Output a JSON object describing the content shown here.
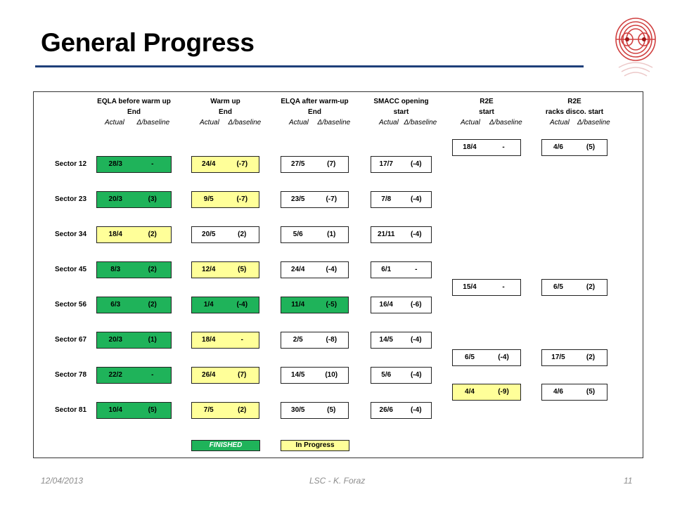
{
  "title": "General Progress",
  "colors": {
    "finished": "#1fb35a",
    "in_progress": "#ffff99",
    "not_started": "#ffffff",
    "rule": "#1f3f7a"
  },
  "columns": [
    {
      "line1": "EQLA before warm up",
      "line2": "End",
      "actual": "Actual",
      "delta": "Δ/baseline"
    },
    {
      "line1": "Warm up",
      "line2": "End",
      "actual": "Actual",
      "delta": "Δ/baseline"
    },
    {
      "line1": "ELQA after warm-up",
      "line2": "End",
      "actual": "Actual",
      "delta": "Δ/baseline"
    },
    {
      "line1": "SMACC opening",
      "line2": "start",
      "actual": "Actual",
      "delta": "Δ/baseline"
    },
    {
      "line1": "R2E",
      "line2": "start",
      "actual": "Actual",
      "delta": "Δ/baseline"
    },
    {
      "line1": "R2E",
      "line2": "racks disco. start",
      "actual": "Actual",
      "delta": "Δ/baseline"
    }
  ],
  "rows": [
    {
      "label": "Sector 12",
      "cells": [
        {
          "actual": "28/3",
          "delta": "-",
          "status": "green"
        },
        {
          "actual": "24/4",
          "delta": "(-7)",
          "status": "yellow"
        },
        {
          "actual": "27/5",
          "delta": "(7)",
          "status": "white"
        },
        {
          "actual": "17/7",
          "delta": "(-4)",
          "status": "white"
        }
      ]
    },
    {
      "label": "Sector 23",
      "cells": [
        {
          "actual": "20/3",
          "delta": "(3)",
          "status": "green"
        },
        {
          "actual": "9/5",
          "delta": "(-7)",
          "status": "yellow"
        },
        {
          "actual": "23/5",
          "delta": "(-7)",
          "status": "white"
        },
        {
          "actual": "7/8",
          "delta": "(-4)",
          "status": "white"
        }
      ]
    },
    {
      "label": "Sector 34",
      "cells": [
        {
          "actual": "18/4",
          "delta": "(2)",
          "status": "yellow"
        },
        {
          "actual": "20/5",
          "delta": "(2)",
          "status": "white"
        },
        {
          "actual": "5/6",
          "delta": "(1)",
          "status": "white"
        },
        {
          "actual": "21/11",
          "delta": "(-4)",
          "status": "white"
        }
      ]
    },
    {
      "label": "Sector 45",
      "cells": [
        {
          "actual": "8/3",
          "delta": "(2)",
          "status": "green"
        },
        {
          "actual": "12/4",
          "delta": "(5)",
          "status": "yellow"
        },
        {
          "actual": "24/4",
          "delta": "(-4)",
          "status": "white"
        },
        {
          "actual": "6/1",
          "delta": "-",
          "status": "white"
        }
      ]
    },
    {
      "label": "Sector 56",
      "cells": [
        {
          "actual": "6/3",
          "delta": "(2)",
          "status": "green"
        },
        {
          "actual": "1/4",
          "delta": "(-4)",
          "status": "green"
        },
        {
          "actual": "11/4",
          "delta": "(-5)",
          "status": "green"
        },
        {
          "actual": "16/4",
          "delta": "(-6)",
          "status": "white"
        }
      ]
    },
    {
      "label": "Sector 67",
      "cells": [
        {
          "actual": "20/3",
          "delta": "(1)",
          "status": "green"
        },
        {
          "actual": "18/4",
          "delta": "-",
          "status": "yellow"
        },
        {
          "actual": "2/5",
          "delta": "(-8)",
          "status": "white"
        },
        {
          "actual": "14/5",
          "delta": "(-4)",
          "status": "white"
        }
      ]
    },
    {
      "label": "Sector 78",
      "cells": [
        {
          "actual": "22/2",
          "delta": "-",
          "status": "green"
        },
        {
          "actual": "26/4",
          "delta": "(7)",
          "status": "yellow"
        },
        {
          "actual": "14/5",
          "delta": "(10)",
          "status": "white"
        },
        {
          "actual": "5/6",
          "delta": "(-4)",
          "status": "white"
        }
      ]
    },
    {
      "label": "Sector 81",
      "cells": [
        {
          "actual": "10/4",
          "delta": "(5)",
          "status": "green"
        },
        {
          "actual": "7/5",
          "delta": "(2)",
          "status": "yellow"
        },
        {
          "actual": "30/5",
          "delta": "(5)",
          "status": "white"
        },
        {
          "actual": "26/6",
          "delta": "(-4)",
          "status": "white"
        }
      ]
    }
  ],
  "r2e_groups": [
    {
      "r2e": {
        "actual": "18/4",
        "delta": "-",
        "status": "white"
      },
      "racks": {
        "actual": "4/6",
        "delta": "(5)",
        "status": "white"
      }
    },
    {
      "r2e": {
        "actual": "15/4",
        "delta": "-",
        "status": "white"
      },
      "racks": {
        "actual": "6/5",
        "delta": "(2)",
        "status": "white"
      }
    },
    {
      "r2e": {
        "actual": "6/5",
        "delta": "(-4)",
        "status": "white"
      },
      "racks": {
        "actual": "17/5",
        "delta": "(2)",
        "status": "white"
      }
    },
    {
      "r2e": {
        "actual": "4/4",
        "delta": "(-9)",
        "status": "yellow"
      },
      "racks": {
        "actual": "4/6",
        "delta": "(5)",
        "status": "white"
      }
    }
  ],
  "legend": {
    "finished": "FINISHED",
    "in_progress": "In Progress"
  },
  "footer": {
    "date": "12/04/2013",
    "author": "LSC - K. Foraz",
    "page": "11"
  }
}
